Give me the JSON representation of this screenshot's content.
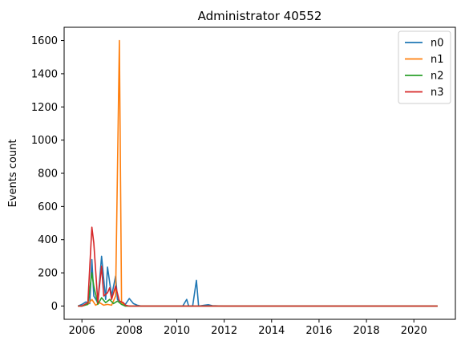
{
  "chart_data": {
    "type": "line",
    "title": "Administrator 40552",
    "xlabel": "",
    "ylabel": "Events count",
    "xlim": [
      2005.25,
      2021.75
    ],
    "ylim": [
      -80,
      1680
    ],
    "x_ticks": [
      2006,
      2008,
      2010,
      2012,
      2014,
      2016,
      2018,
      2020
    ],
    "y_ticks": [
      0,
      200,
      400,
      600,
      800,
      1000,
      1200,
      1400,
      1600
    ],
    "grid": false,
    "legend_position": "top-right",
    "colors": {
      "n0": "#1f77b4",
      "n1": "#ff7f0e",
      "n2": "#2ca02c",
      "n3": "#d62728"
    },
    "series": [
      {
        "name": "n0",
        "points": [
          [
            2005.83,
            0
          ],
          [
            2006.0,
            10
          ],
          [
            2006.17,
            25
          ],
          [
            2006.33,
            15
          ],
          [
            2006.42,
            280
          ],
          [
            2006.5,
            60
          ],
          [
            2006.67,
            20
          ],
          [
            2006.83,
            300
          ],
          [
            2007.0,
            40
          ],
          [
            2007.08,
            235
          ],
          [
            2007.25,
            60
          ],
          [
            2007.42,
            180
          ],
          [
            2007.5,
            40
          ],
          [
            2007.67,
            20
          ],
          [
            2007.83,
            10
          ],
          [
            2008.0,
            45
          ],
          [
            2008.17,
            15
          ],
          [
            2008.33,
            5
          ],
          [
            2008.5,
            0
          ],
          [
            2010.25,
            0
          ],
          [
            2010.42,
            40
          ],
          [
            2010.5,
            0
          ],
          [
            2010.67,
            0
          ],
          [
            2010.83,
            155
          ],
          [
            2010.92,
            0
          ],
          [
            2011.17,
            5
          ],
          [
            2011.33,
            8
          ],
          [
            2011.5,
            2
          ],
          [
            2012.0,
            0
          ],
          [
            2021.0,
            0
          ]
        ]
      },
      {
        "name": "n1",
        "points": [
          [
            2005.83,
            0
          ],
          [
            2006.0,
            0
          ],
          [
            2006.25,
            10
          ],
          [
            2006.42,
            40
          ],
          [
            2006.58,
            5
          ],
          [
            2006.75,
            20
          ],
          [
            2006.92,
            5
          ],
          [
            2007.08,
            10
          ],
          [
            2007.25,
            5
          ],
          [
            2007.42,
            60
          ],
          [
            2007.58,
            1600
          ],
          [
            2007.67,
            20
          ],
          [
            2007.83,
            0
          ],
          [
            2021.0,
            0
          ]
        ]
      },
      {
        "name": "n2",
        "points": [
          [
            2005.83,
            0
          ],
          [
            2006.0,
            0
          ],
          [
            2006.25,
            10
          ],
          [
            2006.42,
            200
          ],
          [
            2006.5,
            120
          ],
          [
            2006.67,
            10
          ],
          [
            2006.83,
            50
          ],
          [
            2007.0,
            20
          ],
          [
            2007.17,
            40
          ],
          [
            2007.33,
            15
          ],
          [
            2007.5,
            30
          ],
          [
            2007.67,
            10
          ],
          [
            2007.83,
            0
          ],
          [
            2021.0,
            0
          ]
        ]
      },
      {
        "name": "n3",
        "points": [
          [
            2005.83,
            0
          ],
          [
            2006.0,
            0
          ],
          [
            2006.25,
            20
          ],
          [
            2006.42,
            475
          ],
          [
            2006.5,
            380
          ],
          [
            2006.67,
            20
          ],
          [
            2006.83,
            240
          ],
          [
            2006.92,
            60
          ],
          [
            2007.08,
            80
          ],
          [
            2007.17,
            110
          ],
          [
            2007.25,
            40
          ],
          [
            2007.42,
            120
          ],
          [
            2007.58,
            30
          ],
          [
            2007.75,
            20
          ],
          [
            2007.83,
            5
          ],
          [
            2008.0,
            0
          ],
          [
            2021.0,
            0
          ]
        ]
      }
    ]
  }
}
